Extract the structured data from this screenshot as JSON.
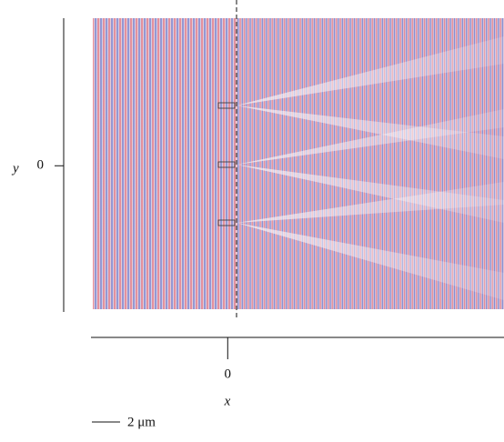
{
  "chart_data": {
    "type": "image",
    "xlabel": "x",
    "ylabel": "y",
    "xlim": [
      -9.7,
      19.6
    ],
    "ylim": [
      -10.4,
      10.5
    ],
    "xticks": [
      0
    ],
    "yticks": [
      0
    ],
    "scale_bar": {
      "value": 2,
      "label": "2 μm"
    }
  }
}
